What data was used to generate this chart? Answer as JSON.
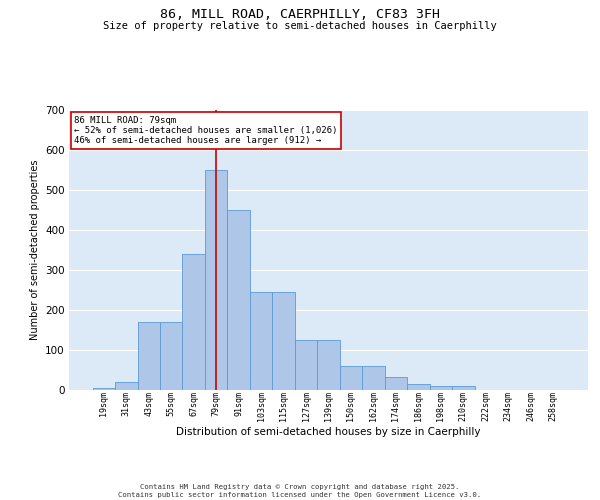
{
  "title1": "86, MILL ROAD, CAERPHILLY, CF83 3FH",
  "title2": "Size of property relative to semi-detached houses in Caerphilly",
  "xlabel": "Distribution of semi-detached houses by size in Caerphilly",
  "ylabel": "Number of semi-detached properties",
  "categories": [
    "19sqm",
    "31sqm",
    "43sqm",
    "55sqm",
    "67sqm",
    "79sqm",
    "91sqm",
    "103sqm",
    "115sqm",
    "127sqm",
    "139sqm",
    "150sqm",
    "162sqm",
    "174sqm",
    "186sqm",
    "198sqm",
    "210sqm",
    "222sqm",
    "234sqm",
    "246sqm",
    "258sqm"
  ],
  "values": [
    5,
    20,
    170,
    170,
    340,
    550,
    450,
    245,
    245,
    125,
    125,
    60,
    60,
    32,
    14,
    10,
    10,
    0,
    0,
    0,
    0
  ],
  "bar_color": "#aec6e8",
  "bar_edge_color": "#5b9bd5",
  "background_color": "#dce9f7",
  "grid_color": "#ffffff",
  "vline_x": 5,
  "vline_color": "#cc0000",
  "annotation_title": "86 MILL ROAD: 79sqm",
  "annotation_line1": "← 52% of semi-detached houses are smaller (1,026)",
  "annotation_line2": "46% of semi-detached houses are larger (912) →",
  "annotation_box_color": "#ffffff",
  "annotation_box_edge": "#cc0000",
  "footer1": "Contains HM Land Registry data © Crown copyright and database right 2025.",
  "footer2": "Contains public sector information licensed under the Open Government Licence v3.0.",
  "ylim": [
    0,
    700
  ],
  "yticks": [
    0,
    100,
    200,
    300,
    400,
    500,
    600,
    700
  ]
}
